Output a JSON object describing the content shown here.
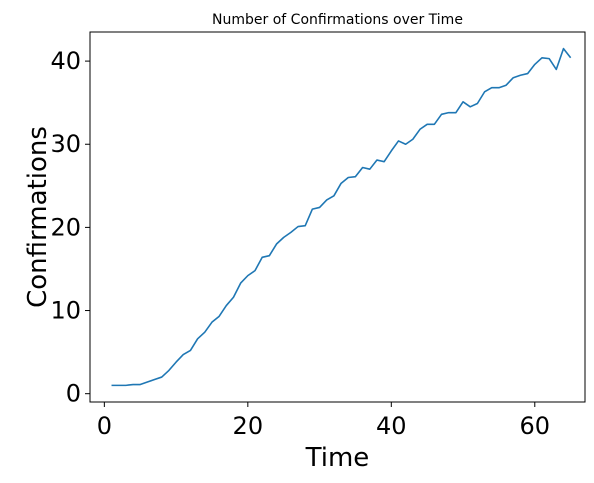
{
  "chart_data": {
    "type": "line",
    "title": "Number of Confirmations over Time",
    "xlabel": "Time",
    "ylabel": "Confirmations",
    "xlim": [
      -2,
      67
    ],
    "ylim": [
      -1,
      43.5
    ],
    "xticks": [
      0,
      20,
      40,
      60
    ],
    "yticks": [
      0,
      10,
      20,
      30,
      40
    ],
    "grid": false,
    "series": [
      {
        "color": "#1f77b4",
        "x": [
          1,
          2,
          3,
          4,
          5,
          6,
          7,
          8,
          9,
          10,
          11,
          12,
          13,
          14,
          15,
          16,
          17,
          18,
          19,
          20,
          21,
          22,
          23,
          24,
          25,
          26,
          27,
          28,
          29,
          30,
          31,
          32,
          33,
          34,
          35,
          36,
          37,
          38,
          39,
          40,
          41,
          42,
          43,
          44,
          45,
          46,
          47,
          48,
          49,
          50,
          51,
          52,
          53,
          54,
          55,
          56,
          57,
          58,
          59,
          60,
          61,
          62,
          63,
          64,
          65
        ],
        "y": [
          1,
          1,
          1,
          1.1,
          1.1,
          1.4,
          1.7,
          2,
          2.8,
          3.8,
          4.7,
          5.2,
          6.6,
          7.4,
          8.6,
          9.3,
          10.6,
          11.6,
          13.3,
          14.2,
          14.8,
          16.4,
          16.6,
          18,
          18.8,
          19.4,
          20.1,
          20.2,
          22.2,
          22.4,
          23.3,
          23.8,
          25.3,
          26,
          26.1,
          27.2,
          27,
          28.1,
          27.9,
          29.2,
          30.4,
          30,
          30.6,
          31.8,
          32.4,
          32.4,
          33.6,
          33.8,
          33.8,
          35.1,
          34.5,
          34.9,
          36.3,
          36.8,
          36.8,
          37.1,
          38,
          38.3,
          38.5,
          39.6,
          40.4,
          40.3,
          39,
          41.5,
          40.4
        ]
      }
    ]
  }
}
